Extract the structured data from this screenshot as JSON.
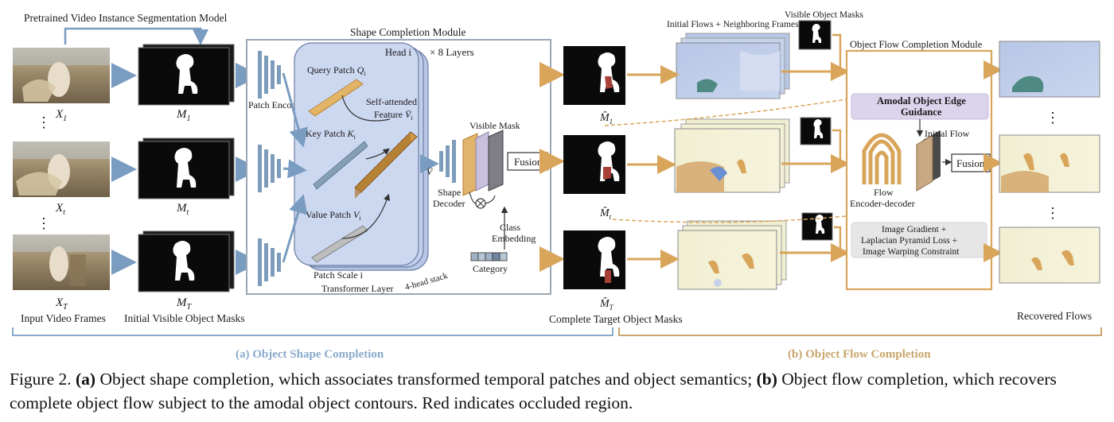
{
  "figure": {
    "top_title": "Pretrained Video Instance Segmentation Model",
    "frames": [
      {
        "label": "X",
        "sub": "1"
      },
      {
        "label": "X",
        "sub": "t"
      },
      {
        "label": "X",
        "sub": "T"
      }
    ],
    "masks": [
      {
        "label": "M",
        "sub": "1"
      },
      {
        "label": "M",
        "sub": "t"
      },
      {
        "label": "M",
        "sub": "T"
      }
    ],
    "input_frames_label": "Input Video Frames",
    "initial_masks_label": "Initial Visible Object Masks",
    "patch_encoder": "Patch Encoder",
    "scm_title": "Shape Completion Module",
    "head_label": "Head i",
    "layers_label": "× 8 Layers",
    "query_patch": "Query Patch",
    "query_sym": "Q",
    "key_patch": "Key Patch",
    "key_sym": "K",
    "value_patch": "Value Patch",
    "value_sym": "V",
    "self_attended_1": "Self-attended",
    "self_attended_2": "Feature",
    "self_attended_sym": "V̄",
    "sym_sub": "i",
    "patch_scale": "Patch Scale i",
    "transformer_layer": "Transformer  Layer",
    "head_stack": "4-head stack",
    "vbar": "V̄",
    "shape_decoder_1": "Shape",
    "shape_decoder_2": "Decoder",
    "visible_mask": "Visible Mask",
    "fusion": "Fusion",
    "class_embedding_1": "Class",
    "class_embedding_2": "Embedding",
    "category": "Category",
    "complete_masks": [
      {
        "label": "M̂",
        "sub": "1"
      },
      {
        "label": "M̂",
        "sub": "t"
      },
      {
        "label": "M̂",
        "sub": "T"
      }
    ],
    "complete_target_label": "Complete Target Object Masks",
    "initial_flows_label": "Initial Flows + Neighboring Frames",
    "visible_obj_masks_label": "Visible Object Masks",
    "ofcm_title": "Object Flow Completion Module",
    "amodal_1": "Amodal Object Edge",
    "amodal_2": "Guidance",
    "initial_flow": "Initial Flow",
    "fusion2": "Fusion",
    "flow_1": "Flow",
    "flow_2": "Encoder-decoder",
    "loss_1": "Image Gradient +",
    "loss_2": "Laplacian Pyramid Loss +",
    "loss_3": "Image Warping Constraint",
    "recovered_flows": "Recovered Flows",
    "section_a": "(a) Object Shape Completion",
    "section_b": "(b) Object Flow Completion",
    "vdots": "⋮",
    "colors": {
      "blue": "#7a9cc0",
      "gold": "#d9a55b",
      "section_a": "#8aaacb",
      "section_b": "#c9a66b"
    }
  },
  "caption": {
    "prefix": "Figure 2. ",
    "a_label": "(a)",
    "a_text": " Object shape completion, which associates transformed temporal patches and object semantics; ",
    "b_label": "(b)",
    "b_text": " Object flow completion, which recovers complete object flow subject to the amodal object contours. Red indicates occluded region."
  }
}
